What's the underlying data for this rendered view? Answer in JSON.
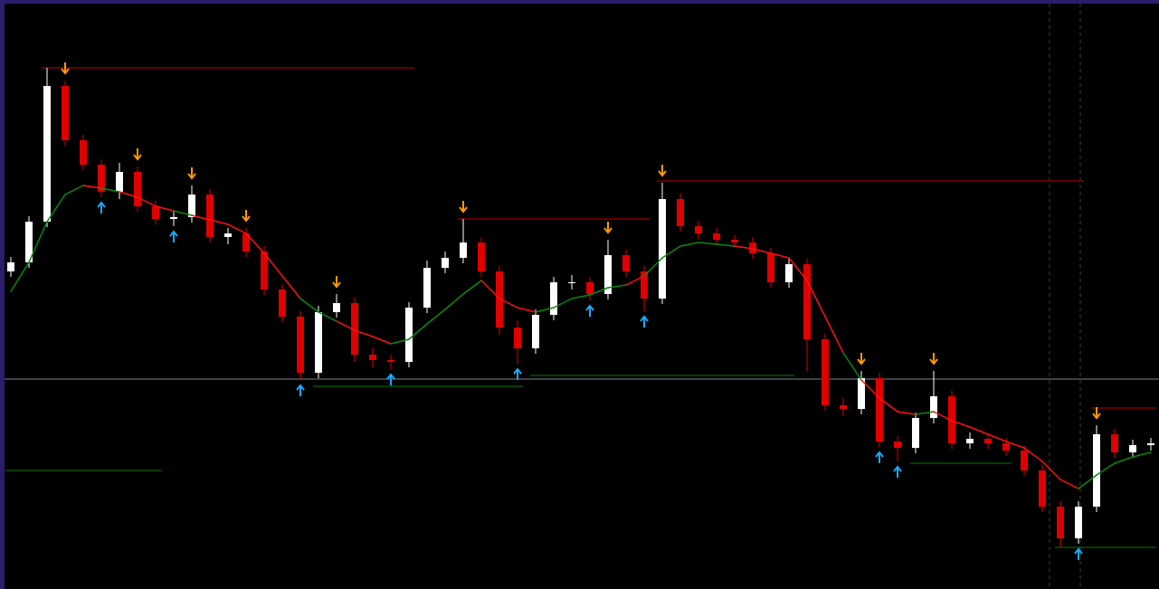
{
  "chart_data": {
    "type": "candlestick",
    "ylim": [
      0,
      650
    ],
    "up_color": "#ffffff",
    "down_color": "#e00000",
    "open": [
      350,
      360,
      405,
      555,
      495,
      468,
      438,
      460,
      422,
      408,
      410,
      435,
      388,
      392,
      372,
      330,
      300,
      238,
      305,
      315,
      258,
      252,
      250,
      310,
      354,
      365,
      382,
      350,
      288,
      265,
      302,
      338,
      338,
      325,
      368,
      350,
      320,
      430,
      400,
      392,
      385,
      382,
      370,
      338,
      358,
      275,
      202,
      198,
      232,
      162,
      155,
      188,
      212,
      160,
      165,
      160,
      152,
      130,
      90,
      55,
      90,
      170,
      150,
      158
    ],
    "high": [
      366,
      411,
      575,
      561,
      501,
      474,
      470,
      466,
      428,
      416,
      445,
      441,
      398,
      398,
      378,
      336,
      306,
      312,
      325,
      321,
      266,
      258,
      316,
      362,
      372,
      408,
      388,
      356,
      296,
      308,
      344,
      346,
      344,
      385,
      374,
      356,
      448,
      436,
      406,
      398,
      390,
      388,
      376,
      364,
      364,
      281,
      210,
      240,
      238,
      168,
      194,
      240,
      218,
      172,
      171,
      166,
      158,
      136,
      96,
      96,
      180,
      176,
      164,
      166
    ],
    "low": [
      344,
      354,
      399,
      489,
      462,
      432,
      430,
      416,
      402,
      400,
      404,
      382,
      380,
      366,
      324,
      294,
      230,
      232,
      299,
      250,
      244,
      242,
      244,
      304,
      348,
      359,
      344,
      280,
      248,
      259,
      296,
      330,
      318,
      319,
      344,
      306,
      314,
      394,
      386,
      379,
      376,
      364,
      332,
      332,
      240,
      196,
      190,
      192,
      156,
      140,
      149,
      182,
      154,
      154,
      154,
      146,
      124,
      84,
      45,
      49,
      84,
      144,
      144,
      152
    ],
    "close": [
      360,
      405,
      555,
      495,
      468,
      438,
      460,
      422,
      408,
      410,
      435,
      388,
      392,
      372,
      330,
      300,
      238,
      305,
      315,
      258,
      252,
      250,
      310,
      354,
      365,
      382,
      350,
      288,
      265,
      302,
      338,
      338,
      325,
      368,
      350,
      320,
      430,
      400,
      392,
      385,
      382,
      370,
      338,
      358,
      275,
      202,
      198,
      232,
      162,
      155,
      188,
      212,
      160,
      165,
      160,
      152,
      130,
      90,
      55,
      90,
      170,
      150,
      158,
      160
    ],
    "ma": {
      "values": [
        328,
        360,
        405,
        435,
        445,
        442,
        438,
        432,
        422,
        417,
        412,
        407,
        402,
        392,
        370,
        345,
        320,
        305,
        295,
        285,
        278,
        270,
        275,
        292,
        308,
        325,
        340,
        320,
        310,
        305,
        310,
        320,
        324,
        332,
        335,
        345,
        365,
        378,
        382,
        380,
        378,
        375,
        370,
        365,
        340,
        300,
        260,
        230,
        210,
        195,
        192,
        195,
        185,
        178,
        170,
        162,
        155,
        140,
        120,
        110,
        125,
        138,
        145,
        150
      ],
      "down_color": "#ff1010",
      "up_color": "#0a8a0a"
    },
    "sell_signals": {
      "indices": [
        3,
        7,
        10,
        13,
        18,
        25,
        33,
        36,
        47,
        51,
        60
      ],
      "color": "#ff9a00"
    },
    "buy_signals": {
      "indices": [
        5,
        9,
        16,
        21,
        28,
        32,
        35,
        48,
        49,
        59
      ],
      "color": "#1aa8ff"
    },
    "levels": [
      {
        "value": 575,
        "from": 2,
        "to": 22,
        "color": "#c00000"
      },
      {
        "value": 408,
        "from": 25,
        "to": 35,
        "color": "#c00000"
      },
      {
        "value": 450,
        "from": 36,
        "to": 59,
        "color": "#c00000"
      },
      {
        "value": 199,
        "from": 60,
        "to": 63,
        "color": "#c00000"
      },
      {
        "value": 130,
        "from": 0,
        "to": 8,
        "color": "#0a7a0a"
      },
      {
        "value": 223,
        "from": 17,
        "to": 28,
        "color": "#0a7a0a"
      },
      {
        "value": 235,
        "from": 29,
        "to": 43,
        "color": "#0a7a0a"
      },
      {
        "value": 138,
        "from": 50,
        "to": 55,
        "color": "#0a7a0a"
      },
      {
        "value": 45,
        "from": 58,
        "to": 63,
        "color": "#0a7a0a"
      }
    ],
    "current_price": {
      "value": 231,
      "color": "#7a8290"
    }
  }
}
